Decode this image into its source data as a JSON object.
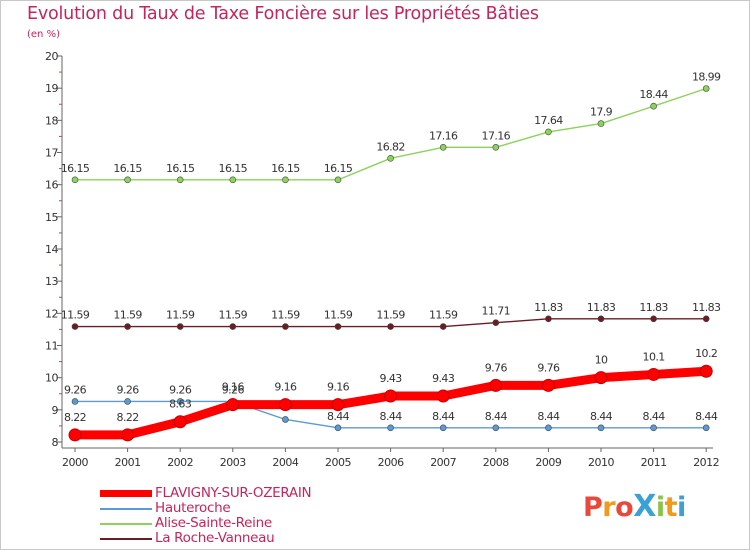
{
  "header": {
    "title": "Evolution du Taux de Taxe Foncière sur les Propriétés Bâties",
    "subtitle": "(en %)"
  },
  "logo": {
    "text": "ProXiti",
    "colors": [
      "#e8493a",
      "#f29a1b",
      "#e8493a",
      "#3aa0d8",
      "#8bc34a",
      "#f29a1b",
      "#3aa0d8"
    ]
  },
  "chart_data": {
    "type": "line",
    "x": [
      "2000",
      "2001",
      "2002",
      "2003",
      "2004",
      "2005",
      "2006",
      "2007",
      "2008",
      "2009",
      "2010",
      "2011",
      "2012"
    ],
    "ylim": [
      8,
      20
    ],
    "yticks": [
      "8",
      "9",
      "10",
      "11",
      "12",
      "13",
      "14",
      "15",
      "16",
      "17",
      "18",
      "19",
      "20"
    ],
    "grid": false,
    "legend_position": "bottom-left",
    "series": [
      {
        "name": "FLAVIGNY-SUR-OZERAIN",
        "color": "#ff0000",
        "values": [
          8.22,
          8.22,
          8.63,
          9.16,
          9.16,
          9.16,
          9.43,
          9.43,
          9.76,
          9.76,
          10,
          10.1,
          10.2
        ],
        "labels": [
          "8.22",
          "8.22",
          "8.63",
          "9.16",
          "9.16",
          "9.16",
          "9.43",
          "9.43",
          "9.76",
          "9.76",
          "10",
          "10.1",
          "10.2"
        ]
      },
      {
        "name": "Hauteroche",
        "color": "#5b9bd5",
        "values": [
          9.26,
          9.26,
          9.26,
          9.26,
          8.7,
          8.44,
          8.44,
          8.44,
          8.44,
          8.44,
          8.44,
          8.44,
          8.44
        ],
        "labels": [
          "9.26",
          "9.26",
          "9.26",
          "9.26",
          "",
          "8.44",
          "8.44",
          "8.44",
          "8.44",
          "8.44",
          "8.44",
          "8.44",
          "8.44"
        ]
      },
      {
        "name": "Alise-Sainte-Reine",
        "color": "#8bd35a",
        "values": [
          16.15,
          16.15,
          16.15,
          16.15,
          16.15,
          16.15,
          16.82,
          17.16,
          17.16,
          17.64,
          17.9,
          18.44,
          18.99
        ],
        "labels": [
          "16.15",
          "16.15",
          "16.15",
          "16.15",
          "16.15",
          "16.15",
          "16.82",
          "17.16",
          "17.16",
          "17.64",
          "17.9",
          "18.44",
          "18.99"
        ]
      },
      {
        "name": "La Roche-Vanneau",
        "color": "#6b1c24",
        "values": [
          11.59,
          11.59,
          11.59,
          11.59,
          11.59,
          11.59,
          11.59,
          11.59,
          11.71,
          11.83,
          11.83,
          11.83,
          11.83
        ],
        "labels": [
          "11.59",
          "11.59",
          "11.59",
          "11.59",
          "11.59",
          "11.59",
          "11.59",
          "11.59",
          "11.71",
          "11.83",
          "11.83",
          "11.83",
          "11.83"
        ]
      }
    ]
  }
}
